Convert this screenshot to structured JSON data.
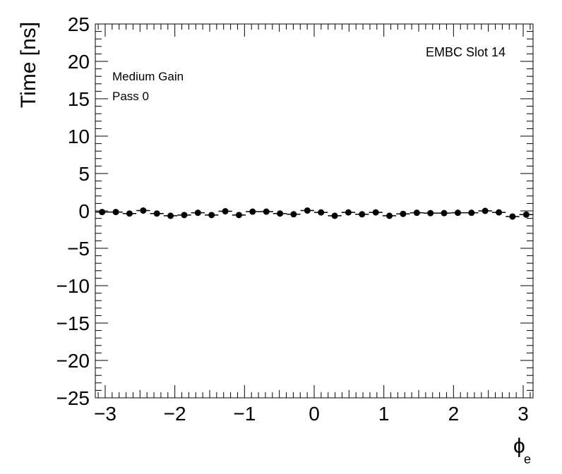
{
  "chart_data": {
    "type": "scatter",
    "title": "",
    "xlabel": "ϕ",
    "xlabel_subscript": "e",
    "ylabel": "Time [ns]",
    "xlim": [
      -3.1416,
      3.1416
    ],
    "ylim": [
      -25,
      25
    ],
    "x_ticks": [
      -3,
      -2,
      -1,
      0,
      1,
      2,
      3
    ],
    "y_ticks": [
      -25,
      -20,
      -15,
      -10,
      -5,
      0,
      5,
      10,
      15,
      20,
      25
    ],
    "x_tick_labels": [
      "−3",
      "−2",
      "−1",
      "0",
      "1",
      "2",
      "3"
    ],
    "y_tick_labels": [
      "−25",
      "−20",
      "−15",
      "−10",
      "−5",
      "0",
      "5",
      "10",
      "15",
      "20",
      "25"
    ],
    "grid": false,
    "annotations": {
      "corner_label": "EMBC Slot 14",
      "gain": "Medium Gain",
      "pass": "Pass 0"
    },
    "series": [
      {
        "x": [
          -3.044,
          -2.847,
          -2.651,
          -2.454,
          -2.258,
          -2.062,
          -1.865,
          -1.669,
          -1.473,
          -1.276,
          -1.08,
          -0.884,
          -0.687,
          -0.491,
          -0.295,
          -0.098,
          0.098,
          0.295,
          0.491,
          0.687,
          0.884,
          1.08,
          1.276,
          1.473,
          1.669,
          1.865,
          2.062,
          2.258,
          2.454,
          2.651,
          2.847,
          3.044
        ],
        "y": [
          -0.15,
          -0.15,
          -0.35,
          0.05,
          -0.35,
          -0.65,
          -0.55,
          -0.25,
          -0.55,
          -0.05,
          -0.55,
          -0.1,
          -0.1,
          -0.35,
          -0.45,
          0.05,
          -0.2,
          -0.65,
          -0.2,
          -0.45,
          -0.2,
          -0.65,
          -0.4,
          -0.25,
          -0.3,
          -0.3,
          -0.25,
          -0.25,
          0.0,
          -0.2,
          -0.75,
          -0.5
        ],
        "xerr": 0.098
      }
    ]
  }
}
